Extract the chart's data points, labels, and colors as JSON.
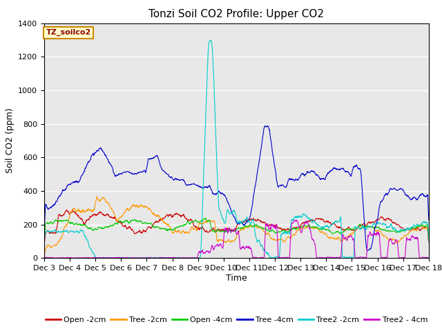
{
  "title": "Tonzi Soil CO2 Profile: Upper CO2",
  "ylabel": "Soil CO2 (ppm)",
  "xlabel": "Time",
  "legend_label": "TZ_soilco2",
  "ylim": [
    0,
    1400
  ],
  "xlim_days": [
    3,
    18
  ],
  "xtick_positions": [
    3,
    4,
    5,
    6,
    7,
    8,
    9,
    10,
    11,
    12,
    13,
    14,
    15,
    16,
    17,
    18
  ],
  "xtick_labels": [
    "Dec 3",
    "Dec 4",
    "Dec 5",
    "Dec 6",
    "Dec 7",
    "Dec 8",
    "Dec 9",
    "Dec 10",
    "Dec 11",
    "Dec 12",
    "Dec 13",
    "Dec 14",
    "Dec 15",
    "Dec 16",
    "Dec 17",
    "Dec 18"
  ],
  "ytick_positions": [
    0,
    200,
    400,
    600,
    800,
    1000,
    1200,
    1400
  ],
  "series_colors": {
    "Open -2cm": "#cc0000",
    "Tree -2cm": "#ff9900",
    "Open -4cm": "#00cc00",
    "Tree -4cm": "#0000cc",
    "Tree2 -2cm": "#00cccc",
    "Tree2 - 4cm": "#cc00cc"
  },
  "plot_bg_color": "#e8e8e8",
  "grid_color": "#ffffff",
  "title_fontsize": 11,
  "axis_label_fontsize": 9,
  "tick_label_fontsize": 8,
  "legend_fontsize": 8,
  "line_width": 0.8,
  "n_points": 1440,
  "legend_box_facecolor": "#ffffcc",
  "legend_box_edgecolor": "#cc8800"
}
